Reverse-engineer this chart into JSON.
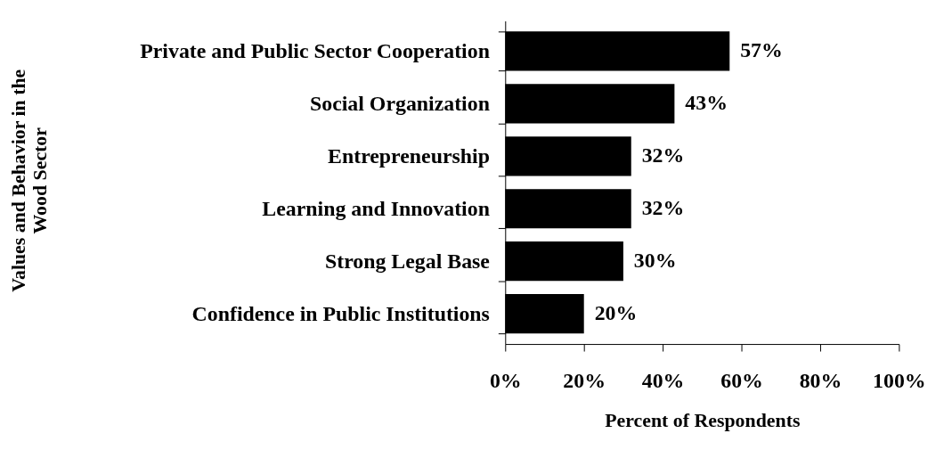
{
  "chart_data": {
    "type": "bar",
    "orientation": "horizontal",
    "categories": [
      "Private and Public Sector Cooperation",
      "Social Organization",
      "Entrepreneurship",
      "Learning and Innovation",
      "Strong Legal Base",
      "Confidence in Public Institutions"
    ],
    "values": [
      57,
      43,
      32,
      32,
      30,
      20
    ],
    "value_labels": [
      "57%",
      "43%",
      "32%",
      "32%",
      "30%",
      "20%"
    ],
    "color": "#000000",
    "xlim": [
      0,
      100
    ],
    "xticks": [
      {
        "value": 0,
        "label": "0%"
      },
      {
        "value": 20,
        "label": "20%"
      },
      {
        "value": 40,
        "label": "40%"
      },
      {
        "value": 60,
        "label": "60%"
      },
      {
        "value": 80,
        "label": "80%"
      },
      {
        "value": 100,
        "label": "100%"
      }
    ],
    "xlabel": "Percent of Respondents",
    "ylabel": "Values and Behavior in the Wood Sector",
    "grid": false
  }
}
